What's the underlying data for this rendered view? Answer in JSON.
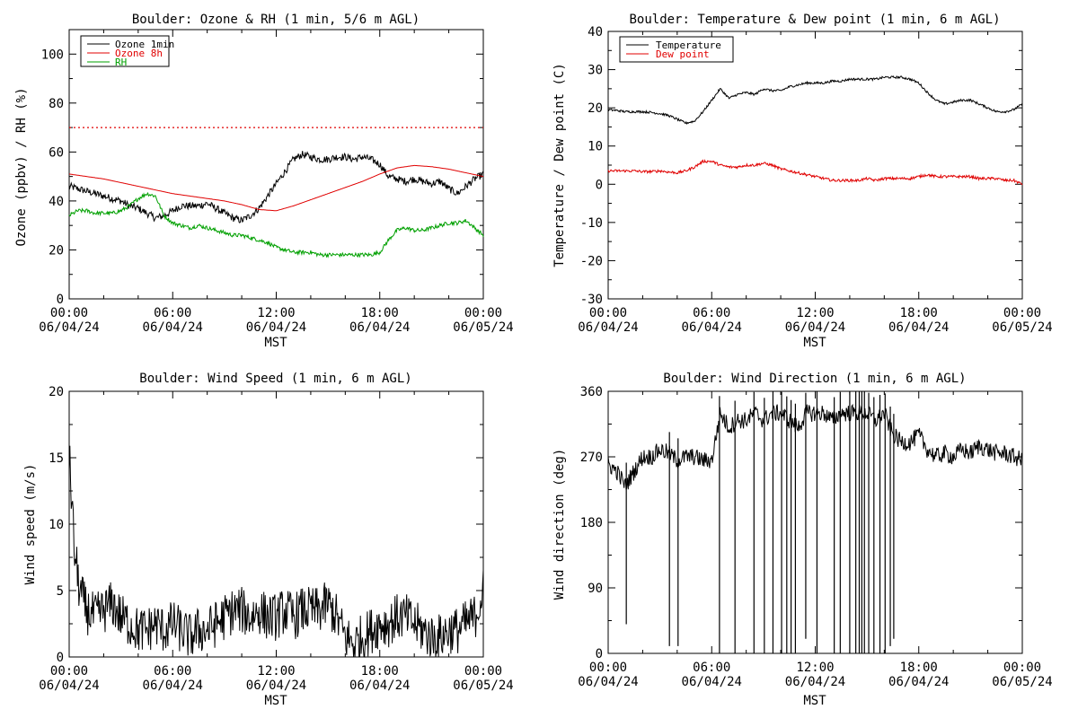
{
  "chart_data": [
    {
      "type": "line",
      "title": "Boulder: Ozone & RH (1 min, 5/6 m AGL)",
      "xlabel": "MST",
      "ylabel": "Ozone (ppbv) / RH (%)",
      "xlim": [
        0,
        24
      ],
      "ylim": [
        0,
        110
      ],
      "yticks": [
        0,
        20,
        40,
        60,
        80,
        100
      ],
      "xtick_labels": [
        {
          "t": 0,
          "time": "00:00",
          "date": "06/04/24"
        },
        {
          "t": 6,
          "time": "06:00",
          "date": "06/04/24"
        },
        {
          "t": 12,
          "time": "12:00",
          "date": "06/04/24"
        },
        {
          "t": 18,
          "time": "18:00",
          "date": "06/04/24"
        },
        {
          "t": 24,
          "time": "00:00",
          "date": "06/05/24"
        }
      ],
      "legend_position": "top-left",
      "reference_line": {
        "y": 70,
        "color": "#e00000",
        "style": "dotted"
      },
      "series": [
        {
          "name": "Ozone 1min",
          "color": "#000000",
          "noise": 1.5,
          "x": [
            0,
            0.5,
            1,
            1.5,
            2,
            2.5,
            3,
            3.5,
            4,
            4.5,
            5,
            5.5,
            6,
            6.5,
            7,
            7.5,
            8,
            8.5,
            9,
            9.5,
            10,
            10.5,
            11,
            11.5,
            12,
            12.5,
            13,
            13.5,
            14,
            14.5,
            15,
            15.5,
            16,
            16.5,
            17,
            17.5,
            18,
            18.5,
            19,
            19.5,
            20,
            20.5,
            21,
            21.5,
            22,
            22.5,
            23,
            23.5,
            24
          ],
          "values": [
            46,
            45,
            44,
            43,
            42,
            41,
            40,
            38,
            37,
            35,
            33,
            34,
            36,
            38,
            38,
            38,
            39,
            37,
            35,
            33,
            32,
            34,
            37,
            42,
            47,
            52,
            57,
            59,
            58,
            57,
            57,
            58,
            58,
            57,
            58,
            57,
            55,
            50,
            49,
            48,
            49,
            48,
            47,
            48,
            45,
            43,
            46,
            49,
            51
          ]
        },
        {
          "name": "Ozone 8h",
          "color": "#e00000",
          "noise": 0,
          "x": [
            0,
            1,
            2,
            3,
            4,
            5,
            6,
            7,
            8,
            9,
            10,
            11,
            12,
            13,
            14,
            15,
            16,
            17,
            18,
            19,
            20,
            21,
            22,
            23,
            24
          ],
          "values": [
            51,
            50,
            49,
            47.5,
            46,
            44.5,
            43,
            42,
            41,
            40,
            38.5,
            36.5,
            36,
            38,
            40.5,
            43,
            45.5,
            48,
            51,
            53.5,
            54.5,
            54,
            53,
            51.5,
            50
          ]
        },
        {
          "name": "RH",
          "color": "#00a000",
          "noise": 0.8,
          "x": [
            0,
            0.5,
            1,
            1.5,
            2,
            2.5,
            3,
            3.5,
            4,
            4.5,
            5,
            5.5,
            6,
            6.5,
            7,
            7.5,
            8,
            8.5,
            9,
            9.5,
            10,
            10.5,
            11,
            11.5,
            12,
            12.5,
            13,
            13.5,
            14,
            14.5,
            15,
            15.5,
            16,
            16.5,
            17,
            17.5,
            18,
            18.5,
            19,
            19.5,
            20,
            20.5,
            21,
            21.5,
            22,
            22.5,
            23,
            23.5,
            24
          ],
          "values": [
            34,
            36,
            36,
            35,
            35,
            35,
            36,
            38,
            41,
            43,
            42,
            34,
            31,
            30,
            29,
            30,
            29,
            28,
            27,
            26,
            26,
            25,
            24,
            23,
            21,
            20,
            19,
            19,
            19,
            18,
            18,
            18,
            18,
            18,
            18,
            18,
            19,
            24,
            28,
            29,
            28,
            28,
            29,
            30,
            31,
            31,
            32,
            29,
            26
          ]
        }
      ]
    },
    {
      "type": "line",
      "title": "Boulder: Temperature & Dew point (1 min, 6 m AGL)",
      "xlabel": "MST",
      "ylabel": "Temperature / Dew point (C)",
      "xlim": [
        0,
        24
      ],
      "ylim": [
        -30,
        40
      ],
      "yticks": [
        -30,
        -20,
        -10,
        0,
        10,
        20,
        30,
        40
      ],
      "xtick_labels": [
        {
          "t": 0,
          "time": "00:00",
          "date": "06/04/24"
        },
        {
          "t": 6,
          "time": "06:00",
          "date": "06/04/24"
        },
        {
          "t": 12,
          "time": "12:00",
          "date": "06/04/24"
        },
        {
          "t": 18,
          "time": "18:00",
          "date": "06/04/24"
        },
        {
          "t": 24,
          "time": "00:00",
          "date": "06/05/24"
        }
      ],
      "legend_position": "top-left",
      "series": [
        {
          "name": "Temperature",
          "color": "#000000",
          "noise": 0.3,
          "x": [
            0,
            0.5,
            1,
            1.5,
            2,
            2.5,
            3,
            3.5,
            4,
            4.5,
            5,
            5.5,
            6,
            6.5,
            7,
            7.5,
            8,
            8.5,
            9,
            9.5,
            10,
            10.5,
            11,
            11.5,
            12,
            12.5,
            13,
            13.5,
            14,
            14.5,
            15,
            15.5,
            16,
            16.5,
            17,
            17.5,
            18,
            18.5,
            19,
            19.5,
            20,
            20.5,
            21,
            21.5,
            22,
            22.5,
            23,
            23.5,
            24
          ],
          "values": [
            19.5,
            19.3,
            19.0,
            19.0,
            19.0,
            18.8,
            18.5,
            18.0,
            17.0,
            16.0,
            16.5,
            19.0,
            22.0,
            25.0,
            22.5,
            23.5,
            24.0,
            23.5,
            25.0,
            24.5,
            24.5,
            25.5,
            26.0,
            26.5,
            26.5,
            26.5,
            27.0,
            27.0,
            27.5,
            27.5,
            27.5,
            27.5,
            28.0,
            28.0,
            28.0,
            27.5,
            26.5,
            24.0,
            22.0,
            21.0,
            21.5,
            22.0,
            22.0,
            21.0,
            20.0,
            19.0,
            19.0,
            19.5,
            21.0
          ]
        },
        {
          "name": "Dew point",
          "color": "#e00000",
          "noise": 0.35,
          "x": [
            0,
            0.5,
            1,
            1.5,
            2,
            2.5,
            3,
            3.5,
            4,
            4.5,
            5,
            5.5,
            6,
            6.5,
            7,
            7.5,
            8,
            8.5,
            9,
            9.5,
            10,
            10.5,
            11,
            11.5,
            12,
            12.5,
            13,
            13.5,
            14,
            14.5,
            15,
            15.5,
            16,
            16.5,
            17,
            17.5,
            18,
            18.5,
            19,
            19.5,
            20,
            20.5,
            21,
            21.5,
            22,
            22.5,
            23,
            23.5,
            24
          ],
          "values": [
            3.5,
            3.5,
            3.5,
            3.5,
            3.3,
            3.3,
            3.5,
            3.2,
            3.0,
            3.5,
            4.5,
            6.0,
            6.0,
            5.0,
            4.5,
            4.5,
            5.0,
            5.0,
            5.5,
            5.0,
            4.0,
            3.5,
            3.0,
            2.5,
            2.0,
            1.5,
            1.0,
            1.0,
            1.0,
            1.0,
            1.5,
            1.0,
            1.5,
            1.5,
            1.5,
            1.5,
            2.0,
            2.5,
            2.0,
            2.0,
            2.0,
            2.0,
            2.0,
            1.5,
            1.5,
            1.5,
            1.0,
            1.0,
            0.0
          ]
        }
      ]
    },
    {
      "type": "line",
      "title": "Boulder: Wind Speed (1 min, 6 m AGL)",
      "xlabel": "MST",
      "ylabel": "Wind speed (m/s)",
      "xlim": [
        0,
        24
      ],
      "ylim": [
        0,
        20
      ],
      "yticks": [
        0,
        5,
        10,
        15,
        20
      ],
      "xtick_labels": [
        {
          "t": 0,
          "time": "00:00",
          "date": "06/04/24"
        },
        {
          "t": 6,
          "time": "06:00",
          "date": "06/04/24"
        },
        {
          "t": 12,
          "time": "12:00",
          "date": "06/04/24"
        },
        {
          "t": 18,
          "time": "18:00",
          "date": "06/04/24"
        },
        {
          "t": 24,
          "time": "00:00",
          "date": "06/05/24"
        }
      ],
      "series": [
        {
          "color": "#000000",
          "noise": 1.8,
          "x": [
            0,
            0.1,
            0.3,
            0.6,
            1,
            1.5,
            2,
            2.5,
            3,
            3.5,
            4,
            4.5,
            5,
            5.5,
            6,
            6.5,
            7,
            7.5,
            8,
            8.5,
            9,
            9.5,
            10,
            10.5,
            11,
            11.5,
            12,
            12.5,
            13,
            13.5,
            14,
            14.5,
            15,
            15.5,
            16,
            16.5,
            17,
            17.5,
            18,
            18.5,
            19,
            19.5,
            20,
            20.5,
            21,
            21.5,
            22,
            22.5,
            23,
            23.5,
            24
          ],
          "values": [
            15,
            13,
            8,
            5,
            3.5,
            3,
            3.5,
            4,
            3,
            2.5,
            2,
            2,
            2.5,
            2,
            2.5,
            2,
            1.5,
            2,
            2,
            2.5,
            3,
            3.5,
            3.5,
            3,
            3.5,
            3,
            3,
            3.5,
            3,
            3.5,
            3.5,
            3.5,
            4,
            3,
            1.5,
            1,
            1.5,
            2,
            2.5,
            2.5,
            3,
            3,
            2.5,
            2,
            1.5,
            1.5,
            2,
            2,
            2.5,
            3,
            5
          ]
        }
      ]
    },
    {
      "type": "line",
      "title": "Boulder: Wind Direction (1 min, 6 m AGL)",
      "xlabel": "MST",
      "ylabel": "Wind direction (deg)",
      "xlim": [
        0,
        24
      ],
      "ylim": [
        0,
        360
      ],
      "yticks": [
        0,
        90,
        180,
        270,
        360
      ],
      "xtick_labels": [
        {
          "t": 0,
          "time": "00:00",
          "date": "06/04/24"
        },
        {
          "t": 6,
          "time": "06:00",
          "date": "06/04/24"
        },
        {
          "t": 12,
          "time": "12:00",
          "date": "06/04/24"
        },
        {
          "t": 18,
          "time": "18:00",
          "date": "06/04/24"
        },
        {
          "t": 24,
          "time": "00:00",
          "date": "06/05/24"
        }
      ],
      "series": [
        {
          "color": "#000000",
          "noise": 12,
          "x": [
            0,
            0.5,
            1,
            1.5,
            2,
            2.5,
            3,
            3.5,
            4,
            4.5,
            5,
            5.5,
            6,
            6.5,
            7,
            7.5,
            8,
            8.5,
            9,
            9.5,
            10,
            10.5,
            11,
            11.5,
            12,
            12.5,
            13,
            13.5,
            14,
            14.5,
            15,
            15.5,
            16,
            16.5,
            17,
            17.5,
            18,
            18.5,
            19,
            19.5,
            20,
            20.5,
            21,
            21.5,
            22,
            22.5,
            23,
            23.5,
            24
          ],
          "values": [
            260,
            250,
            230,
            250,
            270,
            270,
            280,
            275,
            265,
            270,
            270,
            265,
            265,
            330,
            310,
            320,
            320,
            330,
            320,
            330,
            330,
            320,
            310,
            330,
            330,
            330,
            320,
            330,
            330,
            330,
            330,
            320,
            330,
            300,
            290,
            290,
            300,
            280,
            270,
            275,
            270,
            280,
            275,
            285,
            280,
            275,
            275,
            270,
            265
          ],
          "spikes": [
            1.05,
            3.55,
            4.05,
            6.45,
            7.35,
            8.45,
            9.05,
            9.55,
            10.05,
            10.35,
            10.6,
            10.85,
            11.45,
            12.1,
            13.1,
            13.45,
            14.0,
            14.35,
            14.55,
            14.7,
            14.85,
            15.1,
            15.4,
            15.75,
            16.05,
            16.35,
            16.55
          ],
          "spike_bottoms": [
            40,
            10,
            10,
            0,
            0,
            0,
            0,
            0,
            0,
            0,
            0,
            0,
            20,
            0,
            0,
            0,
            0,
            0,
            0,
            0,
            0,
            0,
            0,
            0,
            0,
            10,
            20
          ]
        }
      ]
    }
  ]
}
